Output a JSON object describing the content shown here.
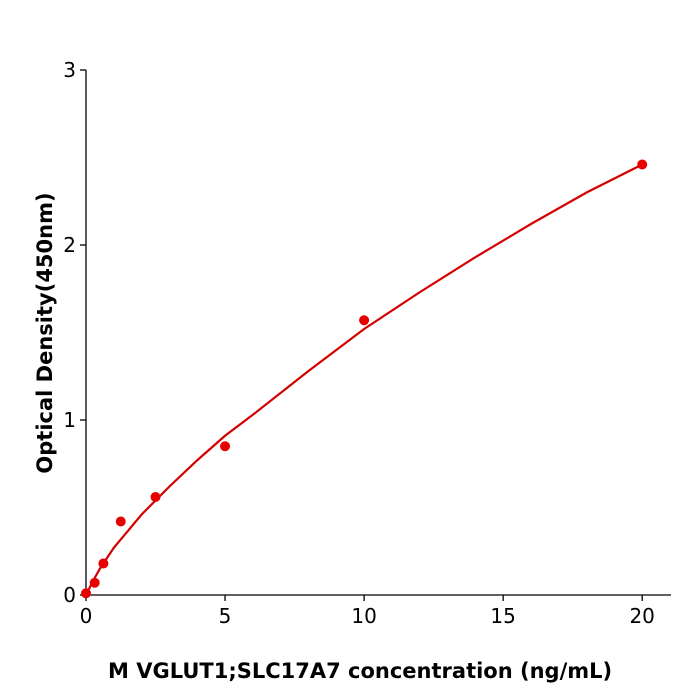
{
  "chart_data": {
    "type": "scatter",
    "x_label": "M  VGLUT1;SLC17A7 concentration (ng/mL)",
    "y_label": "Optical Density(450nm)",
    "xlim": [
      0,
      21
    ],
    "ylim": [
      0,
      3
    ],
    "xticks": [
      0,
      5,
      10,
      15,
      20
    ],
    "yticks": [
      0,
      1,
      2,
      3
    ],
    "grid": false,
    "series": [
      {
        "type": "scatter",
        "color": "#e60000",
        "x": [
          0,
          0.3125,
          0.625,
          1.25,
          2.5,
          5,
          10,
          20
        ],
        "values": [
          0.01,
          0.07,
          0.18,
          0.42,
          0.56,
          0.85,
          1.57,
          2.46
        ]
      },
      {
        "type": "line",
        "color": "#d40000",
        "x": [
          0,
          0.25,
          0.5,
          1,
          2,
          3,
          4,
          5,
          6,
          8,
          10,
          12,
          14,
          16,
          18,
          20
        ],
        "values": [
          0,
          0.08,
          0.15,
          0.27,
          0.46,
          0.62,
          0.77,
          0.91,
          1.03,
          1.28,
          1.52,
          1.73,
          1.93,
          2.12,
          2.3,
          2.46
        ]
      }
    ]
  }
}
